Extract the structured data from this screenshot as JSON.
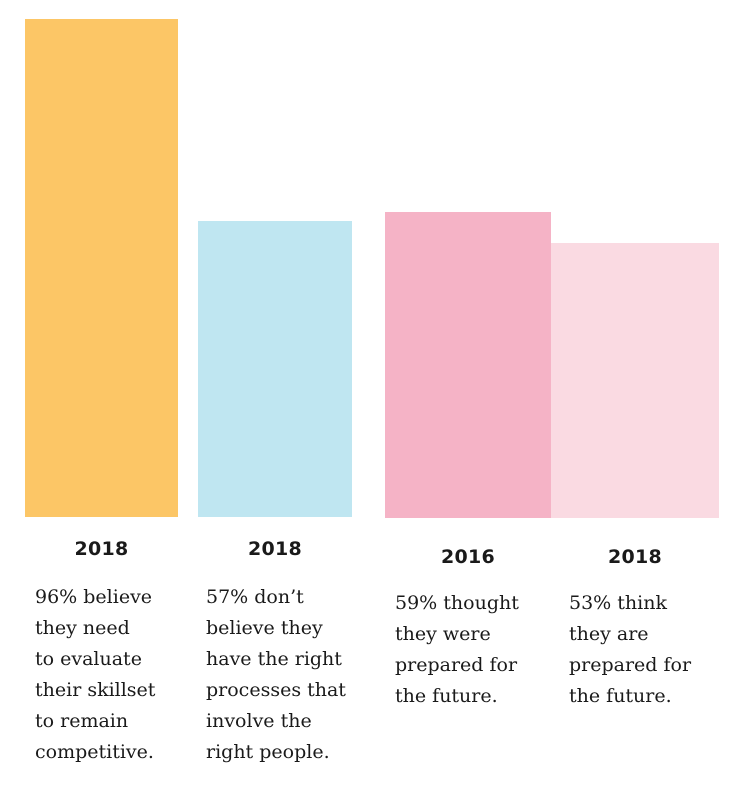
{
  "chart_data": {
    "type": "bar",
    "categories": [
      "2018",
      "2018",
      "2016",
      "2018"
    ],
    "values": [
      96,
      57,
      59,
      53
    ],
    "unit": "%",
    "ylim": [
      0,
      96
    ],
    "colors": [
      "#fcc666",
      "#bfe6f1",
      "#f5b3c6",
      "#fadae2"
    ],
    "descriptions": [
      [
        "96% believe",
        "they need",
        "to evaluate",
        "their skillset",
        "to remain",
        "competitive."
      ],
      [
        "57% don’t",
        "believe they",
        "have the right",
        "processes that",
        "involve the",
        "right people."
      ],
      [
        "59% thought",
        "they were",
        "prepared for",
        "the future."
      ],
      [
        "53% think",
        "they are",
        "prepared for",
        "the future."
      ]
    ],
    "grid": false,
    "legend": "none"
  }
}
